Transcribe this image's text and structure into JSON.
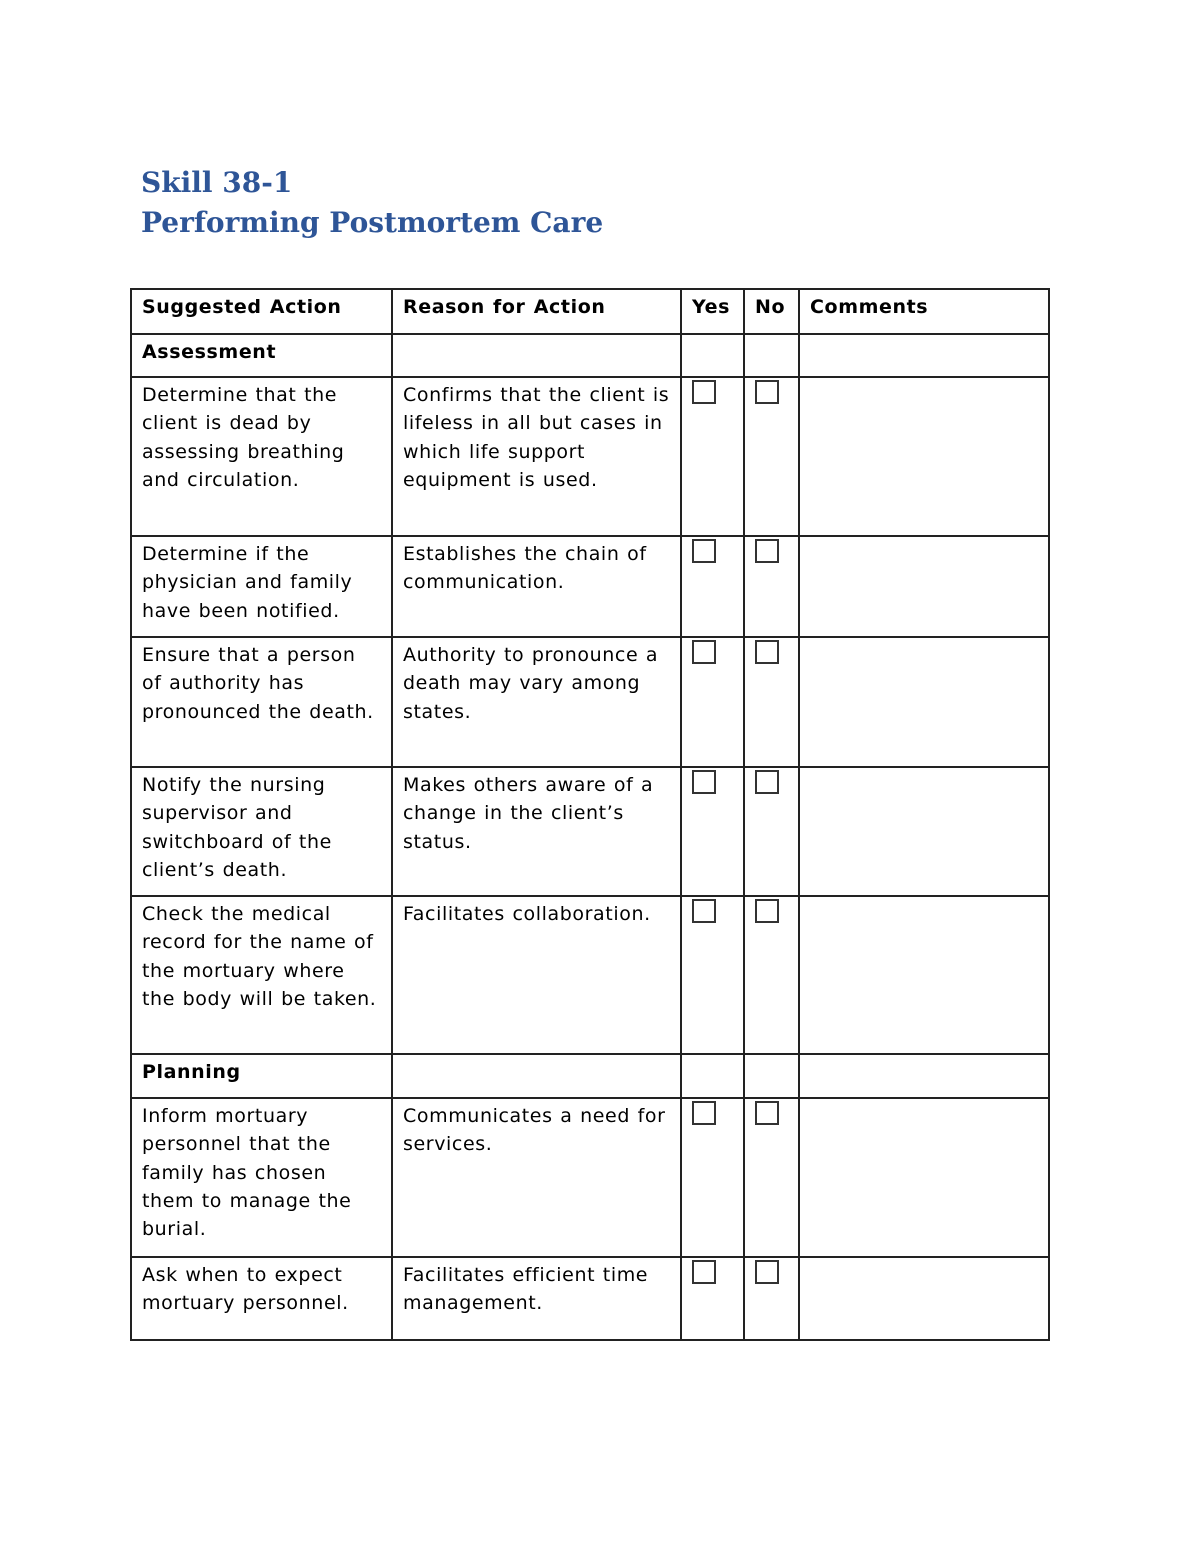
{
  "title": {
    "line1": "Skill 38-1",
    "line2": "Performing Postmortem Care"
  },
  "table": {
    "headers": [
      "Suggested Action",
      "Reason for Action",
      "Yes",
      "No",
      "Comments"
    ],
    "rows": [
      {
        "type": "section",
        "label": "Assessment"
      },
      {
        "type": "item",
        "action": "Determine that the client is dead by assessing breathing and circulation.",
        "reason": "Confirms that the client is lifeless in all but cases in which life support equipment is used.",
        "yes": false,
        "no": false,
        "comments": ""
      },
      {
        "type": "item",
        "action": "Determine if the physician and family have been notified.",
        "reason": "Establishes the chain of communication.",
        "yes": false,
        "no": false,
        "comments": ""
      },
      {
        "type": "item",
        "action": "Ensure that a person of authority has pronounced the death.",
        "reason": "Authority to pronounce a death may vary among states.",
        "yes": false,
        "no": false,
        "comments": ""
      },
      {
        "type": "item",
        "action": "Notify the nursing supervisor and switchboard of the client’s death.",
        "reason": "Makes others aware of a change in the client’s status.",
        "yes": false,
        "no": false,
        "comments": ""
      },
      {
        "type": "item",
        "action": "Check the medical record for the name of the mortuary where the body will be taken.",
        "reason": "Facilitates collaboration.",
        "yes": false,
        "no": false,
        "comments": ""
      },
      {
        "type": "section",
        "label": "Planning"
      },
      {
        "type": "item",
        "action": "Inform mortuary personnel that the family has chosen them to manage the burial.",
        "reason": "Communicates a need for services.",
        "yes": false,
        "no": false,
        "comments": ""
      },
      {
        "type": "item",
        "action": "Ask when to expect mortuary personnel.",
        "reason": "Facilitates efficient time management.",
        "yes": false,
        "no": false,
        "comments": ""
      }
    ]
  }
}
